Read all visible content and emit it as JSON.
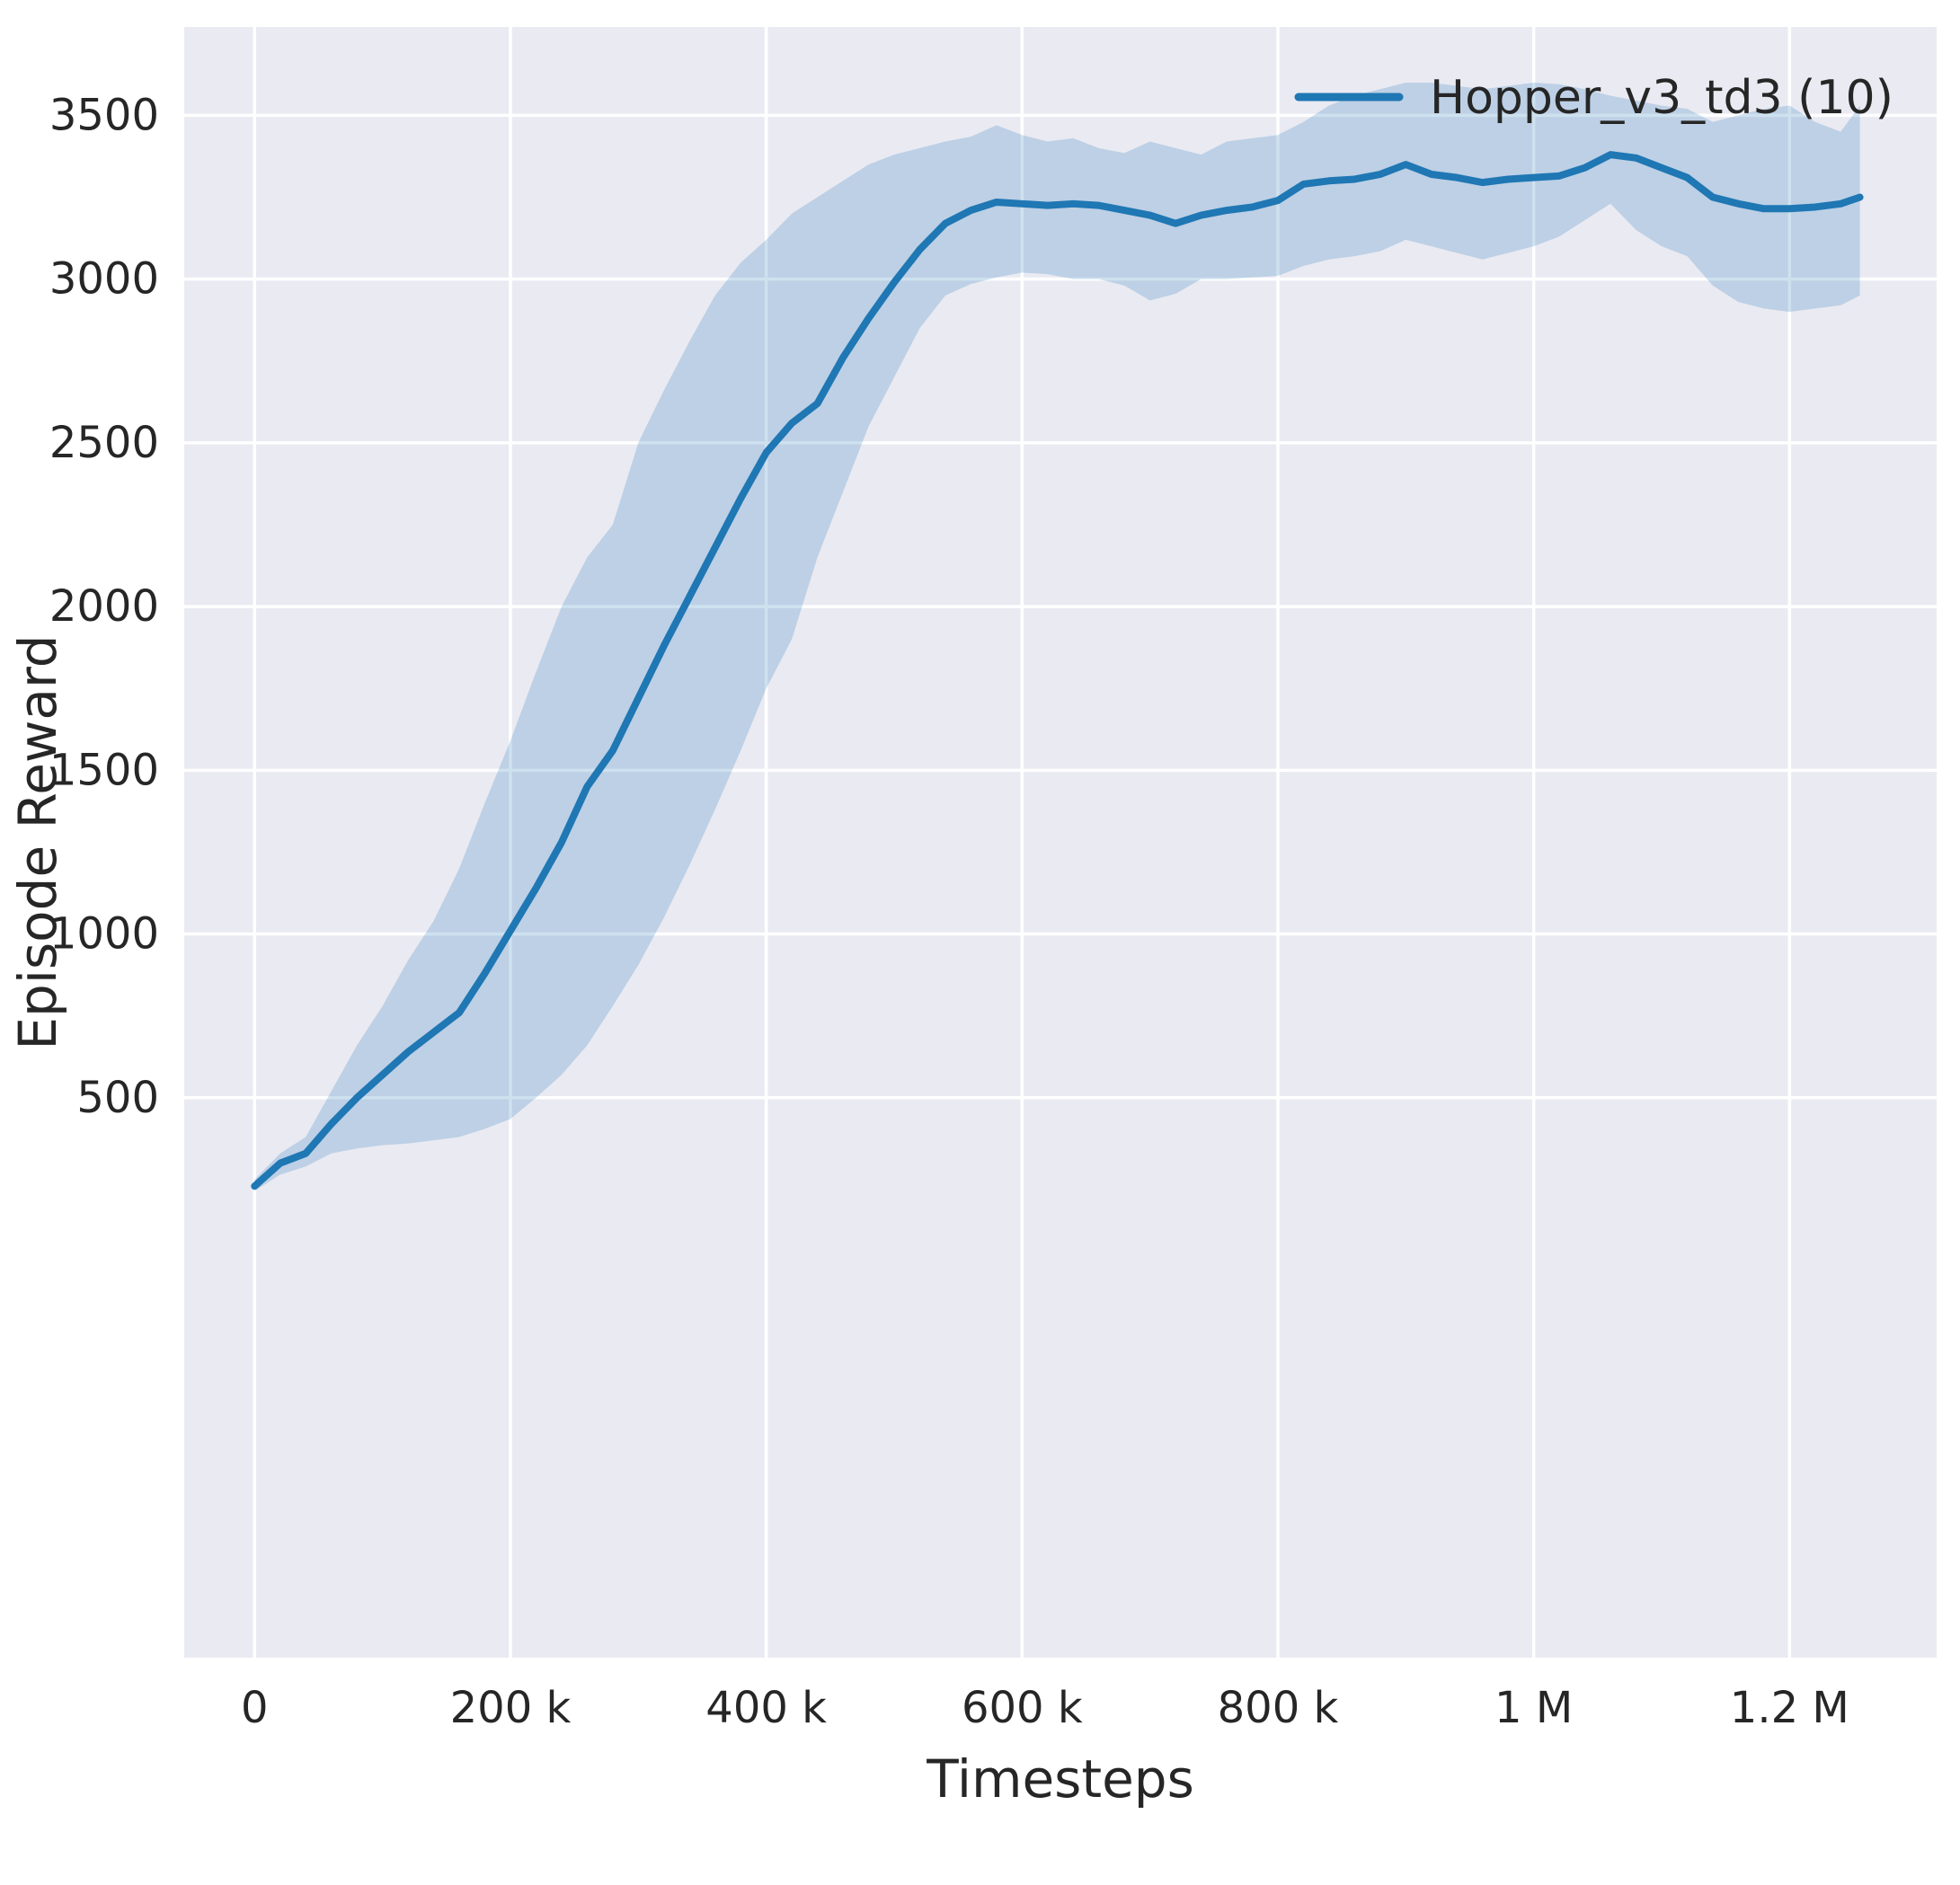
{
  "figure": {
    "background": "#ffffff",
    "axes_background": "#eaeaf2",
    "grid_color": "#ffffff",
    "text_color": "#262626",
    "tick_font_size": 48,
    "label_font_size": 58,
    "legend_font_size": 52
  },
  "chart_data": {
    "type": "line",
    "title": "",
    "xlabel": "Timesteps",
    "ylabel": "Episode Reward",
    "grid": true,
    "legend_position": "upper right",
    "xlim": [
      -55000,
      1315000
    ],
    "ylim": [
      -1210,
      3770
    ],
    "xticks": {
      "values": [
        0,
        200000,
        400000,
        600000,
        800000,
        1000000,
        1200000
      ],
      "labels": [
        "0",
        "200 k",
        "400 k",
        "600 k",
        "800 k",
        "1 M",
        "1.2 M"
      ]
    },
    "yticks": {
      "values": [
        500,
        1000,
        1500,
        2000,
        2500,
        3000,
        3500
      ],
      "labels": [
        "500",
        "1000",
        "1500",
        "2000",
        "2500",
        "3000",
        "3500"
      ]
    },
    "series": [
      {
        "name": "Hopper_v3_td3 (10)",
        "color": "#1f77b4",
        "line_width": 8,
        "band_opacity": 0.22,
        "x": [
          0,
          20000,
          40000,
          60000,
          80000,
          100000,
          120000,
          140000,
          160000,
          180000,
          200000,
          220000,
          240000,
          260000,
          280000,
          300000,
          320000,
          340000,
          360000,
          380000,
          400000,
          420000,
          440000,
          460000,
          480000,
          500000,
          520000,
          540000,
          560000,
          580000,
          600000,
          620000,
          640000,
          660000,
          680000,
          700000,
          720000,
          740000,
          760000,
          780000,
          800000,
          820000,
          840000,
          860000,
          880000,
          900000,
          920000,
          940000,
          960000,
          980000,
          1000000,
          1020000,
          1040000,
          1060000,
          1080000,
          1100000,
          1120000,
          1140000,
          1160000,
          1180000,
          1200000,
          1220000,
          1240000,
          1255000
        ],
        "mean": [
          230,
          300,
          330,
          420,
          500,
          570,
          640,
          700,
          760,
          880,
          1010,
          1140,
          1280,
          1450,
          1560,
          1720,
          1880,
          2030,
          2180,
          2330,
          2470,
          2560,
          2620,
          2760,
          2880,
          2990,
          3090,
          3170,
          3210,
          3235,
          3230,
          3225,
          3230,
          3225,
          3210,
          3195,
          3170,
          3195,
          3210,
          3220,
          3240,
          3290,
          3300,
          3305,
          3320,
          3350,
          3320,
          3310,
          3295,
          3305,
          3310,
          3315,
          3340,
          3380,
          3370,
          3340,
          3310,
          3250,
          3230,
          3215,
          3215,
          3220,
          3230,
          3250
        ],
        "lower": [
          215,
          265,
          290,
          330,
          345,
          355,
          360,
          370,
          380,
          405,
          435,
          500,
          570,
          660,
          780,
          905,
          1050,
          1210,
          1380,
          1560,
          1750,
          1900,
          2150,
          2350,
          2550,
          2700,
          2850,
          2950,
          2985,
          3005,
          3020,
          3015,
          3000,
          3000,
          2980,
          2935,
          2955,
          3000,
          3000,
          3005,
          3010,
          3040,
          3060,
          3070,
          3085,
          3120,
          3100,
          3080,
          3060,
          3080,
          3100,
          3130,
          3180,
          3230,
          3150,
          3100,
          3070,
          2980,
          2930,
          2910,
          2900,
          2910,
          2920,
          2950
        ],
        "upper": [
          250,
          330,
          380,
          520,
          660,
          780,
          920,
          1040,
          1200,
          1400,
          1590,
          1800,
          2000,
          2150,
          2250,
          2500,
          2660,
          2810,
          2950,
          3050,
          3120,
          3200,
          3250,
          3300,
          3350,
          3380,
          3400,
          3420,
          3435,
          3470,
          3440,
          3420,
          3430,
          3400,
          3385,
          3420,
          3400,
          3380,
          3420,
          3430,
          3440,
          3480,
          3530,
          3560,
          3580,
          3600,
          3600,
          3590,
          3580,
          3590,
          3600,
          3595,
          3580,
          3560,
          3545,
          3530,
          3520,
          3480,
          3500,
          3520,
          3530,
          3480,
          3450,
          3530
        ]
      }
    ],
    "legend": [
      {
        "label": "Hopper_v3_td3 (10)",
        "color": "#1f77b4"
      }
    ]
  }
}
